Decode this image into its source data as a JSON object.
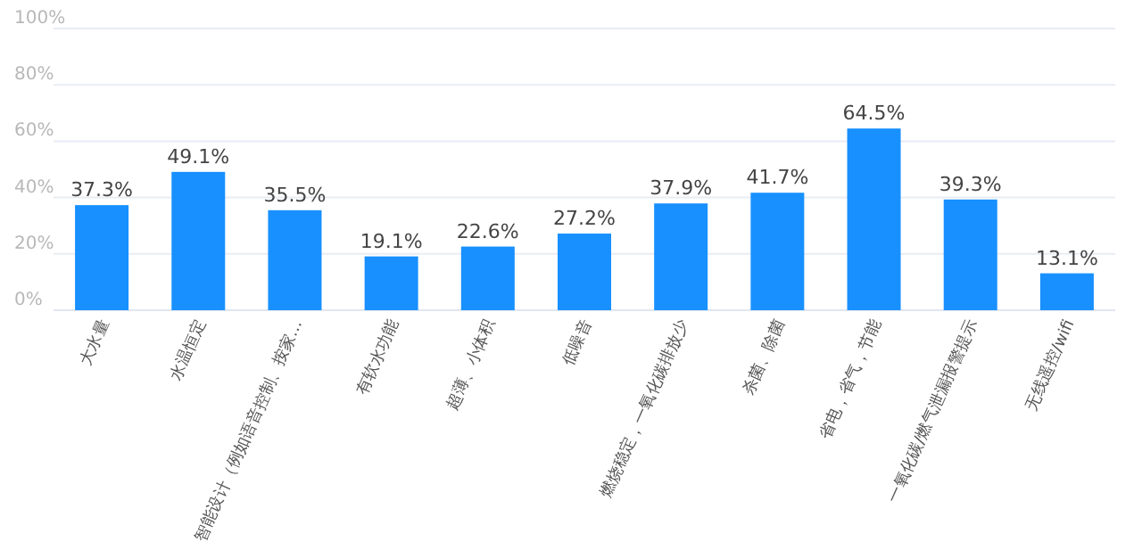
{
  "chart_data": {
    "type": "bar",
    "categories": [
      "大水量",
      "水温恒定",
      "智能设计（例如语音控制、按家…",
      "有软水功能",
      "超薄、小体积",
      "低噪音",
      "燃烧稳定，一氧化碳排放少",
      "杀菌、除菌",
      "省电，省气，节能",
      "一氧化碳/燃气泄漏报警提示",
      "无线遥控/wifi"
    ],
    "values": [
      37.3,
      49.1,
      35.5,
      19.1,
      22.6,
      27.2,
      37.9,
      41.7,
      64.5,
      39.3,
      13.1
    ],
    "value_labels": [
      "37.3%",
      "49.1%",
      "35.5%",
      "19.1%",
      "22.6%",
      "27.2%",
      "37.9%",
      "41.7%",
      "64.5%",
      "39.3%",
      "13.1%"
    ],
    "color": "#1890ff",
    "ylim": [
      0,
      100
    ],
    "yticks": [
      {
        "value": 0,
        "label": "0%"
      },
      {
        "value": 20,
        "label": "20%"
      },
      {
        "value": 40,
        "label": "40%"
      },
      {
        "value": 60,
        "label": "60%"
      },
      {
        "value": 80,
        "label": "80%"
      },
      {
        "value": 100,
        "label": "100%"
      }
    ],
    "grid": "y"
  }
}
